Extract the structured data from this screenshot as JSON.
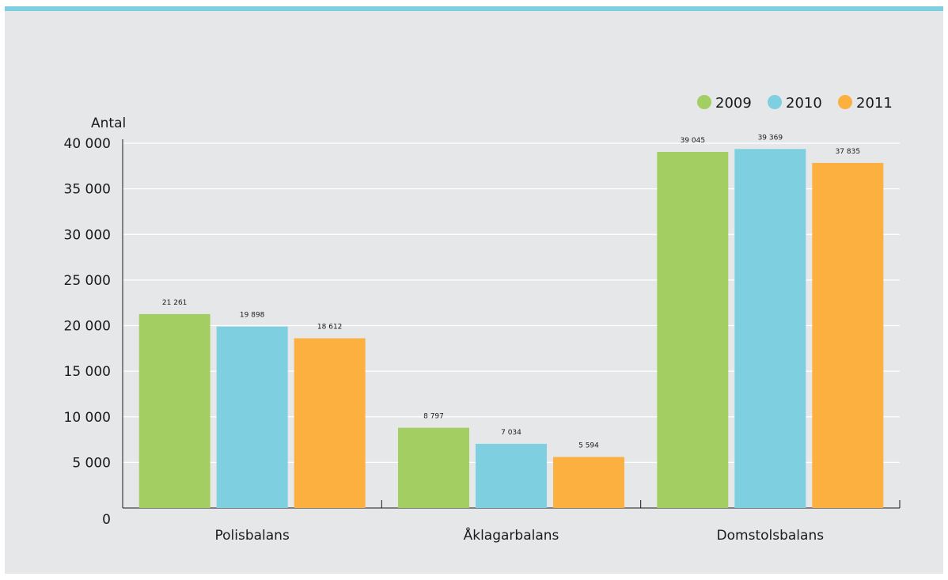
{
  "chart_data": {
    "type": "bar",
    "ylabel": "Antal",
    "categories": [
      "Polisbalans",
      "Åklagarbalans",
      "Domstolsbalans"
    ],
    "series": [
      {
        "name": "2009",
        "color": "#a3cf62",
        "values": [
          21261,
          8797,
          39045
        ],
        "labels": [
          "21 261",
          "8 797",
          "39 045"
        ]
      },
      {
        "name": "2010",
        "color": "#7ecfe0",
        "values": [
          19898,
          7034,
          39369
        ],
        "labels": [
          "19 898",
          "7 034",
          "39 369"
        ]
      },
      {
        "name": "2011",
        "color": "#fbb040",
        "values": [
          18612,
          5594,
          37835
        ],
        "labels": [
          "18 612",
          "5 594",
          "37 835"
        ]
      }
    ],
    "ylim": [
      0,
      40000
    ],
    "yticks": [
      0,
      5000,
      10000,
      15000,
      20000,
      25000,
      30000,
      35000,
      40000
    ],
    "ytick_labels": [
      "0",
      "5 000",
      "10 000",
      "15 000",
      "20 000",
      "25 000",
      "30 000",
      "35 000",
      "40 000"
    ],
    "grid": true,
    "legend_position": "top-right"
  }
}
